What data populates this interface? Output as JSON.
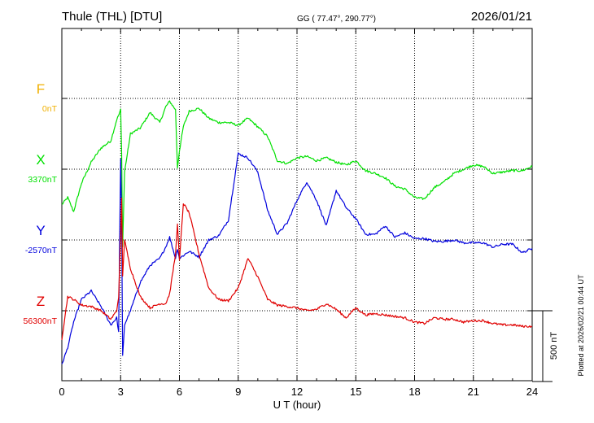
{
  "header": {
    "station": "Thule (THL)  [DTU]",
    "coords": "GG ( 77.47°, 290.77°)",
    "date": "2026/01/21"
  },
  "footer": {
    "plotted_note": "Plotted at 2026/02/21 00:44 UT"
  },
  "scale_bar": {
    "label": "500 nT",
    "value_nT": 500
  },
  "colors": {
    "F": "#f0b000",
    "X": "#00e000",
    "Y": "#0000dd",
    "Z": "#e00000"
  },
  "chart_data": {
    "type": "line",
    "title": "Thule (THL)  [DTU]",
    "xlabel": "U T (hour)",
    "xlim": [
      0,
      24
    ],
    "xticks": [
      "0",
      "3",
      "6",
      "9",
      "12",
      "15",
      "18",
      "21",
      "24"
    ],
    "grid": true,
    "components": [
      {
        "name": "F",
        "baseline_label": "0nT",
        "color": "#f0b000",
        "values": []
      },
      {
        "name": "X",
        "baseline_label": "3370nT",
        "color": "#00e000",
        "x": [
          0,
          0.3,
          0.6,
          1.0,
          1.5,
          2.0,
          2.5,
          2.8,
          2.9,
          3.0,
          3.05,
          3.1,
          3.2,
          3.5,
          4.0,
          4.5,
          5.0,
          5.3,
          5.5,
          5.8,
          5.9,
          6.0,
          6.2,
          6.5,
          7.0,
          7.5,
          8.0,
          8.5,
          9.0,
          9.5,
          10.0,
          10.5,
          11.0,
          11.5,
          12.0,
          12.5,
          13.0,
          13.5,
          14.0,
          14.5,
          15.0,
          15.5,
          16.0,
          16.5,
          17.0,
          17.5,
          18.0,
          18.5,
          19.0,
          19.5,
          20.0,
          20.5,
          21.0,
          21.5,
          22.0,
          22.5,
          23.0,
          23.5,
          24.0
        ],
        "values": [
          -250,
          -200,
          -300,
          -100,
          50,
          150,
          200,
          350,
          380,
          420,
          100,
          -550,
          -20,
          250,
          290,
          400,
          330,
          440,
          480,
          420,
          10,
          130,
          300,
          410,
          430,
          360,
          330,
          330,
          310,
          360,
          300,
          230,
          60,
          40,
          80,
          90,
          60,
          80,
          50,
          30,
          60,
          -10,
          -30,
          -60,
          -120,
          -140,
          -200,
          -210,
          -130,
          -90,
          -30,
          0,
          30,
          20,
          -30,
          -20,
          -10,
          -10,
          20
        ]
      },
      {
        "name": "Y",
        "baseline_label": "-2570nT",
        "color": "#0000dd",
        "x": [
          0,
          0.3,
          0.6,
          1.0,
          1.5,
          2.0,
          2.5,
          2.8,
          2.9,
          3.0,
          3.05,
          3.1,
          3.2,
          3.5,
          4.0,
          4.5,
          5.0,
          5.3,
          5.5,
          5.8,
          5.9,
          6.0,
          6.2,
          6.5,
          7.0,
          7.5,
          8.0,
          8.5,
          9.0,
          9.5,
          10.0,
          10.5,
          11.0,
          11.5,
          12.0,
          12.5,
          13.0,
          13.5,
          14.0,
          14.5,
          15.0,
          15.5,
          16.0,
          16.5,
          17.0,
          17.5,
          18.0,
          18.5,
          19.0,
          19.5,
          20.0,
          20.5,
          21.0,
          21.5,
          22.0,
          22.5,
          23.0,
          23.5,
          24.0
        ],
        "values": [
          -880,
          -760,
          -580,
          -420,
          -360,
          -470,
          -600,
          -550,
          -650,
          580,
          150,
          -820,
          -600,
          -500,
          -300,
          -180,
          -130,
          -50,
          20,
          -130,
          -60,
          -130,
          -110,
          -80,
          -120,
          0,
          30,
          140,
          610,
          580,
          480,
          210,
          40,
          120,
          280,
          410,
          280,
          100,
          350,
          230,
          150,
          40,
          40,
          100,
          20,
          50,
          10,
          10,
          -10,
          -10,
          0,
          -20,
          -20,
          -20,
          -50,
          -30,
          -30,
          -90,
          -60
        ]
      },
      {
        "name": "Z",
        "baseline_label": "56300nT",
        "color": "#e00000",
        "x": [
          0,
          0.3,
          0.6,
          1.0,
          1.5,
          2.0,
          2.5,
          2.8,
          2.9,
          3.0,
          3.05,
          3.1,
          3.2,
          3.5,
          4.0,
          4.5,
          5.0,
          5.3,
          5.5,
          5.8,
          5.9,
          6.0,
          6.2,
          6.5,
          7.0,
          7.5,
          8.0,
          8.5,
          9.0,
          9.5,
          10.0,
          10.5,
          11.0,
          11.5,
          12.0,
          12.5,
          13.0,
          13.5,
          14.0,
          14.5,
          15.0,
          15.5,
          16.0,
          16.5,
          17.0,
          17.5,
          18.0,
          18.5,
          19.0,
          19.5,
          20.0,
          20.5,
          21.0,
          21.5,
          22.0,
          22.5,
          23.0,
          23.5,
          24.0
        ],
        "values": [
          -200,
          100,
          80,
          40,
          30,
          0,
          -60,
          0,
          100,
          520,
          800,
          250,
          500,
          300,
          100,
          20,
          50,
          50,
          120,
          400,
          620,
          350,
          760,
          690,
          400,
          160,
          80,
          70,
          160,
          370,
          240,
          80,
          40,
          30,
          20,
          0,
          10,
          50,
          10,
          -50,
          20,
          -30,
          -20,
          -30,
          -40,
          -50,
          -80,
          -90,
          -50,
          -60,
          -60,
          -80,
          -70,
          -70,
          -90,
          -100,
          -100,
          -110,
          -110
        ]
      }
    ]
  }
}
